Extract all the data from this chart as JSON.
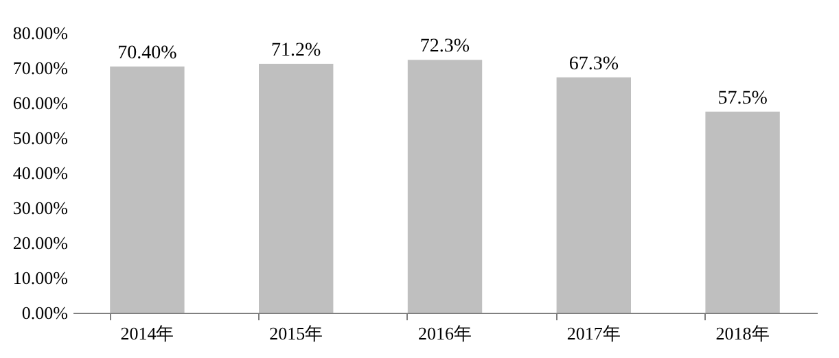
{
  "chart_data": {
    "type": "bar",
    "categories": [
      "2014年",
      "2015年",
      "2016年",
      "2017年",
      "2018年"
    ],
    "values": [
      70.4,
      71.2,
      72.3,
      67.3,
      57.5
    ],
    "value_labels": [
      "70.40%",
      "71.2%",
      "72.3%",
      "67.3%",
      "57.5%"
    ],
    "color": "#bfbfbf",
    "ylim": [
      0,
      80
    ],
    "yticks": [
      {
        "value": 0,
        "label": "0.00%"
      },
      {
        "value": 10,
        "label": "10.00%"
      },
      {
        "value": 20,
        "label": "20.00%"
      },
      {
        "value": 30,
        "label": "30.00%"
      },
      {
        "value": 40,
        "label": "40.00%"
      },
      {
        "value": 50,
        "label": "50.00%"
      },
      {
        "value": 60,
        "label": "60.00%"
      },
      {
        "value": 70,
        "label": "70.00%"
      },
      {
        "value": 80,
        "label": "80.00%"
      }
    ],
    "grid": false
  }
}
